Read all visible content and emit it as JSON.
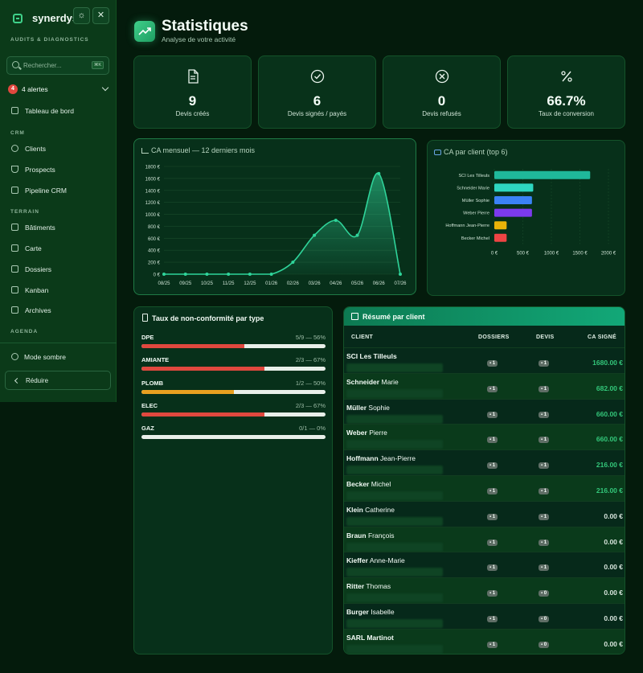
{
  "app": {
    "name": "synerdys",
    "section": "AUDITS & DIAGNOSTICS"
  },
  "sidebar": {
    "search_placeholder": "Rechercher...",
    "search_shortcut": "⌘K",
    "alerts_count": "4",
    "alerts_label": "4 alertes",
    "dashboard": "Tableau de bord",
    "crm_label": "CRM",
    "crm_items": [
      "Clients",
      "Prospects",
      "Pipeline CRM"
    ],
    "terrain_label": "TERRAIN",
    "terrain_items": [
      "Bâtiments",
      "Carte",
      "Dossiers",
      "Kanban",
      "Archives"
    ],
    "agenda_label": "AGENDA",
    "dark_mode": "Mode sombre",
    "collapse": "Réduire"
  },
  "header": {
    "title": "Statistiques",
    "subtitle": "Analyse de votre activité"
  },
  "kpis": [
    {
      "value": "9",
      "label": "Devis créés",
      "icon": "document-icon"
    },
    {
      "value": "6",
      "label": "Devis signés / payés",
      "icon": "check-circle-icon"
    },
    {
      "value": "0",
      "label": "Devis refusés",
      "icon": "x-circle-icon"
    },
    {
      "value": "66.7%",
      "label": "Taux de conversion",
      "icon": "percent-icon"
    }
  ],
  "monthly": {
    "title": "CA mensuel — 12 derniers mois"
  },
  "client_chart": {
    "title": "CA par client (top 6)"
  },
  "chart_data": [
    {
      "type": "area",
      "title": "CA mensuel — 12 derniers mois",
      "x": [
        "08/25",
        "09/25",
        "10/25",
        "11/25",
        "12/25",
        "01/26",
        "02/26",
        "03/26",
        "04/26",
        "05/26",
        "06/26",
        "07/26"
      ],
      "y": [
        0,
        0,
        0,
        0,
        0,
        0,
        200,
        650,
        900,
        650,
        1680,
        0
      ],
      "ylim": [
        0,
        1800
      ],
      "yticks": [
        "0 €",
        "200 €",
        "400 €",
        "600 €",
        "800 €",
        "1000 €",
        "1200 €",
        "1400 €",
        "1600 €",
        "1800 €"
      ],
      "color": "#2fd49a",
      "grid": true
    },
    {
      "type": "bar",
      "orientation": "horizontal",
      "title": "CA par client (top 6)",
      "categories": [
        "SCI Les Tilleuls",
        "Schneider Marie",
        "Müller Sophie",
        "Weber Pierre",
        "Hoffmann Jean-Pierre",
        "Becker Michel"
      ],
      "values": [
        1680,
        682,
        660,
        660,
        216,
        216
      ],
      "colors": [
        "#1fb89a",
        "#2ed6c0",
        "#3b82f6",
        "#7c3aed",
        "#eab308",
        "#ef4444"
      ],
      "xlim": [
        0,
        2000
      ],
      "xticks": [
        "0 €",
        "500 €",
        "1000 €",
        "1500 €",
        "2000 €"
      ],
      "grid": true
    }
  ],
  "nonconformity": {
    "title": "Taux de non-conformité par type",
    "rows": [
      {
        "type": "DPE",
        "value": "5/9 — 56%",
        "pct": 0.56,
        "color": "#e0483e"
      },
      {
        "type": "AMIANTE",
        "value": "2/3 — 67%",
        "pct": 0.67,
        "color": "#e0483e"
      },
      {
        "type": "PLOMB",
        "value": "1/2 — 50%",
        "pct": 0.5,
        "color": "#e8a020"
      },
      {
        "type": "ELEC",
        "value": "2/3 — 67%",
        "pct": 0.67,
        "color": "#e0483e"
      },
      {
        "type": "GAZ",
        "value": "0/1 — 0%",
        "pct": 0.0,
        "color": "#e0483e"
      }
    ]
  },
  "summary": {
    "title": "Résumé par client",
    "headers": {
      "client": "CLIENT",
      "dossiers": "DOSSIERS",
      "devis": "DEVIS",
      "ca": "CA SIGNÉ"
    },
    "rows": [
      {
        "last": "SCI Les Tilleuls",
        "first": "",
        "dossiers": "1",
        "devis": "1",
        "ca": "1680.00 €",
        "active": true
      },
      {
        "last": "Schneider",
        "first": "Marie",
        "dossiers": "1",
        "devis": "1",
        "ca": "682.00 €",
        "active": true
      },
      {
        "last": "Müller",
        "first": "Sophie",
        "dossiers": "1",
        "devis": "1",
        "ca": "660.00 €",
        "active": true
      },
      {
        "last": "Weber",
        "first": "Pierre",
        "dossiers": "1",
        "devis": "1",
        "ca": "660.00 €",
        "active": true
      },
      {
        "last": "Hoffmann",
        "first": "Jean-Pierre",
        "dossiers": "1",
        "devis": "1",
        "ca": "216.00 €",
        "active": true
      },
      {
        "last": "Becker",
        "first": "Michel",
        "dossiers": "1",
        "devis": "1",
        "ca": "216.00 €",
        "active": true
      },
      {
        "last": "Klein",
        "first": "Catherine",
        "dossiers": "1",
        "devis": "1",
        "ca": "0.00 €",
        "active": false
      },
      {
        "last": "Braun",
        "first": "François",
        "dossiers": "1",
        "devis": "1",
        "ca": "0.00 €",
        "active": false
      },
      {
        "last": "Kieffer",
        "first": "Anne-Marie",
        "dossiers": "1",
        "devis": "1",
        "ca": "0.00 €",
        "active": false
      },
      {
        "last": "Ritter",
        "first": "Thomas",
        "dossiers": "1",
        "devis": "0",
        "ca": "0.00 €",
        "active": false
      },
      {
        "last": "Burger",
        "first": "Isabelle",
        "dossiers": "1",
        "devis": "0",
        "ca": "0.00 €",
        "active": false
      },
      {
        "last": "SARL Martinot",
        "first": "",
        "dossiers": "1",
        "devis": "0",
        "ca": "0.00 €",
        "active": false
      }
    ]
  }
}
